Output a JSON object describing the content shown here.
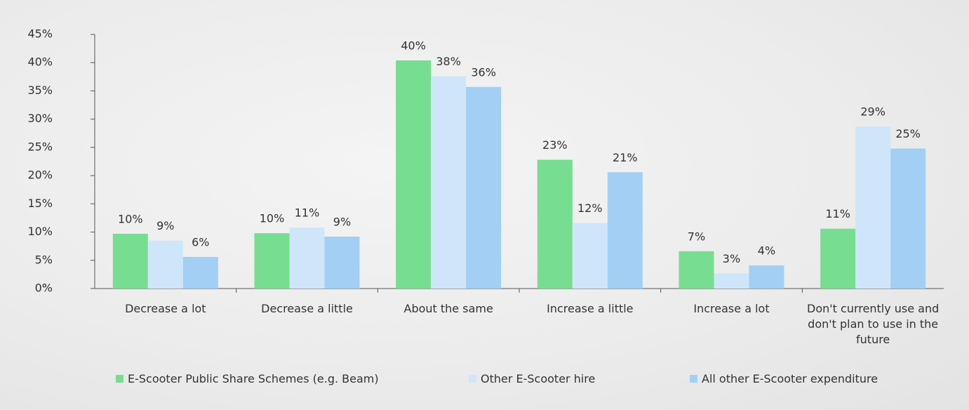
{
  "chart_data": {
    "type": "bar",
    "categories": [
      "Decrease a lot",
      "Decrease a little",
      "About the same",
      "Increase a little",
      "Increase a lot",
      "Don't currently use and don't plan to use in the future"
    ],
    "series": [
      {
        "name": "E-Scooter Public Share Schemes (e.g. Beam)",
        "color": "#77dd90",
        "values": [
          9.7,
          9.8,
          40.4,
          22.8,
          6.6,
          10.6
        ],
        "value_labels": [
          "10%",
          "10%",
          "40%",
          "23%",
          "7%",
          "11%"
        ]
      },
      {
        "name": "Other E-Scooter hire",
        "color": "#cfe6fa",
        "values": [
          8.5,
          10.8,
          37.6,
          11.6,
          2.7,
          28.7
        ],
        "value_labels": [
          "9%",
          "11%",
          "38%",
          "12%",
          "3%",
          "29%"
        ]
      },
      {
        "name": "All other E-Scooter expenditure",
        "color": "#a3cff5",
        "values": [
          5.6,
          9.2,
          35.7,
          20.6,
          4.1,
          24.8
        ],
        "value_labels": [
          "6%",
          "9%",
          "36%",
          "21%",
          "4%",
          "25%"
        ]
      }
    ],
    "ylim": [
      0,
      45
    ],
    "yticks": [
      {
        "value": 0,
        "label": "0%"
      },
      {
        "value": 5,
        "label": "5%"
      },
      {
        "value": 10,
        "label": "10%"
      },
      {
        "value": 15,
        "label": "15%"
      },
      {
        "value": 20,
        "label": "20%"
      },
      {
        "value": 25,
        "label": "25%"
      },
      {
        "value": 30,
        "label": "30%"
      },
      {
        "value": 35,
        "label": "35%"
      },
      {
        "value": 40,
        "label": "40%"
      },
      {
        "value": 45,
        "label": "45%"
      }
    ],
    "grid": false,
    "legend": "bottom"
  }
}
